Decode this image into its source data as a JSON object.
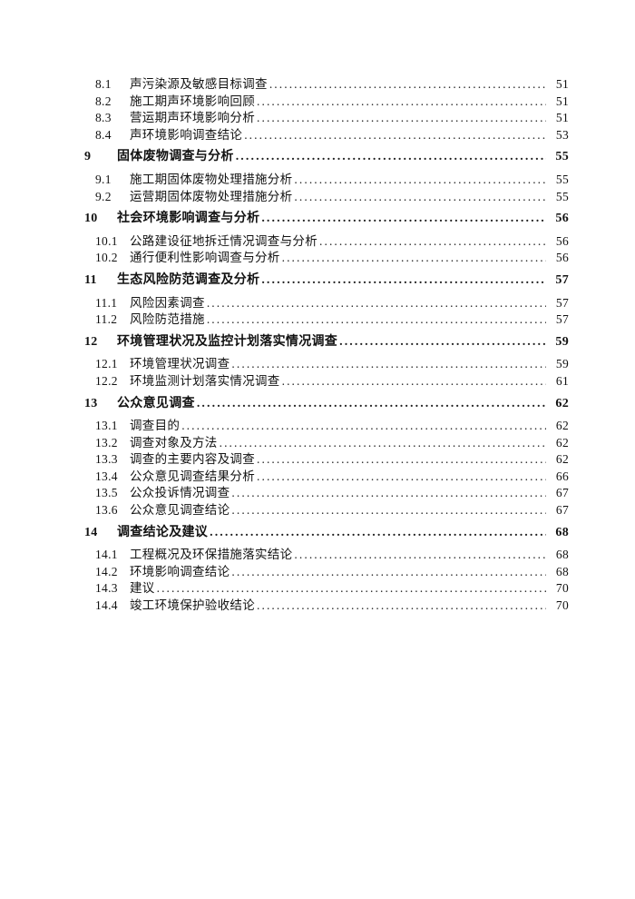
{
  "document": {
    "toc_entries": [
      {
        "level": 2,
        "num": "8.1",
        "title": "声污染源及敏感目标调查",
        "page": "51"
      },
      {
        "level": 2,
        "num": "8.2",
        "title": "施工期声环境影响回顾",
        "page": "51"
      },
      {
        "level": 2,
        "num": "8.3",
        "title": "营运期声环境影响分析",
        "page": "51"
      },
      {
        "level": 2,
        "num": "8.4",
        "title": "声环境影响调查结论",
        "page": "53"
      },
      {
        "level": 1,
        "num": "9",
        "title": "固体废物调查与分析",
        "page": "55"
      },
      {
        "level": 2,
        "num": "9.1",
        "title": "施工期固体废物处理措施分析",
        "page": "55"
      },
      {
        "level": 2,
        "num": "9.2",
        "title": "运营期固体废物处理措施分析",
        "page": "55"
      },
      {
        "level": 1,
        "num": "10",
        "title": "社会环境影响调查与分析",
        "page": "56"
      },
      {
        "level": 2,
        "num": "10.1",
        "title": "公路建设征地拆迁情况调查与分析",
        "page": "56"
      },
      {
        "level": 2,
        "num": "10.2",
        "title": "通行便利性影响调查与分析",
        "page": "56"
      },
      {
        "level": 1,
        "num": "11",
        "title": "生态风险防范调查及分析",
        "page": "57"
      },
      {
        "level": 2,
        "num": "11.1",
        "title": "风险因素调查",
        "page": "57"
      },
      {
        "level": 2,
        "num": "11.2",
        "title": "风险防范措施",
        "page": "57"
      },
      {
        "level": 1,
        "num": "12",
        "title": "环境管理状况及监控计划落实情况调查",
        "page": "59"
      },
      {
        "level": 2,
        "num": "12.1",
        "title": "环境管理状况调查",
        "page": "59"
      },
      {
        "level": 2,
        "num": "12.2",
        "title": "环境监测计划落实情况调查",
        "page": "61"
      },
      {
        "level": 1,
        "num": "13",
        "title": "公众意见调查",
        "page": "62"
      },
      {
        "level": 2,
        "num": "13.1",
        "title": "调查目的",
        "page": "62"
      },
      {
        "level": 2,
        "num": "13.2",
        "title": "调查对象及方法",
        "page": "62"
      },
      {
        "level": 2,
        "num": "13.3",
        "title": "调查的主要内容及调查",
        "page": "62"
      },
      {
        "level": 2,
        "num": "13.4",
        "title": "公众意见调查结果分析",
        "page": "66"
      },
      {
        "level": 2,
        "num": "13.5",
        "title": "公众投诉情况调查",
        "page": "67"
      },
      {
        "level": 2,
        "num": "13.6",
        "title": "公众意见调查结论",
        "page": "67"
      },
      {
        "level": 1,
        "num": "14",
        "title": "调查结论及建议",
        "page": "68"
      },
      {
        "level": 2,
        "num": "14.1",
        "title": "工程概况及环保措施落实结论",
        "page": "68"
      },
      {
        "level": 2,
        "num": "14.2",
        "title": "环境影响调查结论",
        "page": "68"
      },
      {
        "level": 2,
        "num": "14.3",
        "title": "建议",
        "page": "70"
      },
      {
        "level": 2,
        "num": "14.4",
        "title": "竣工环境保护验收结论",
        "page": "70"
      }
    ]
  }
}
